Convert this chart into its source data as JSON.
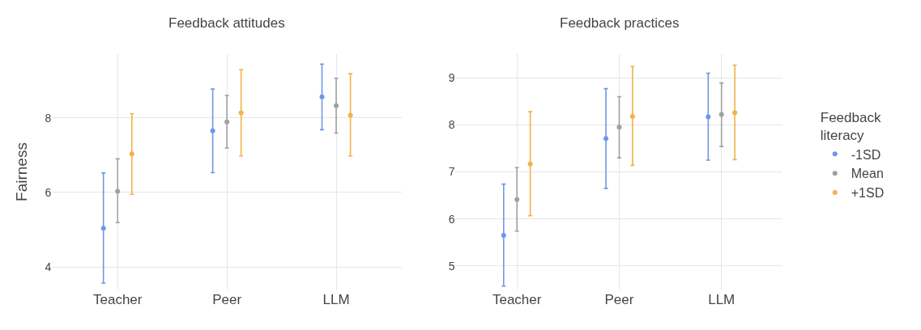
{
  "chart_data": [
    {
      "type": "scatter",
      "title": "Feedback attitudes",
      "legend_title": "Feedback literacy",
      "ylabel": "Fairness",
      "categories": [
        "Teacher",
        "Peer",
        "LLM"
      ],
      "ylim": [
        3.4,
        9.7
      ],
      "yticks": [
        4,
        6,
        8
      ],
      "grid": true,
      "marker": "circle",
      "legend": "right",
      "series": [
        {
          "name": "-1SD",
          "color": "#6f96e8",
          "values": [
            5.04,
            7.65,
            8.56
          ],
          "errors": [
            [
              3.57,
              6.52
            ],
            [
              6.53,
              8.77
            ],
            [
              7.68,
              9.44
            ]
          ]
        },
        {
          "name": "Mean",
          "color": "#a0a0a0",
          "values": [
            6.03,
            7.89,
            8.32
          ],
          "errors": [
            [
              5.19,
              6.9
            ],
            [
              7.19,
              8.6
            ],
            [
              7.59,
              9.06
            ]
          ]
        },
        {
          "name": "+1SD",
          "color": "#f5b04a",
          "values": [
            7.03,
            8.13,
            8.07
          ],
          "errors": [
            [
              5.95,
              8.11
            ],
            [
              6.98,
              9.29
            ],
            [
              6.98,
              9.18
            ]
          ]
        }
      ]
    },
    {
      "type": "scatter",
      "title": "Feedback practices",
      "categories": [
        "Teacher",
        "Peer",
        "LLM"
      ],
      "ylim": [
        4.5,
        9.5
      ],
      "yticks": [
        5,
        6,
        7,
        8,
        9
      ],
      "grid": true,
      "marker": "circle",
      "series": [
        {
          "color": "#6f96e8",
          "values": [
            5.65,
            7.71,
            8.17
          ],
          "errors": [
            [
              4.57,
              6.74
            ],
            [
              6.65,
              8.77
            ],
            [
              7.25,
              9.1
            ]
          ]
        },
        {
          "color": "#a0a0a0",
          "values": [
            6.41,
            7.95,
            8.22
          ],
          "errors": [
            [
              5.74,
              7.09
            ],
            [
              7.3,
              8.6
            ],
            [
              7.54,
              8.89
            ]
          ]
        },
        {
          "color": "#f5b04a",
          "values": [
            7.17,
            8.18,
            8.26
          ],
          "errors": [
            [
              6.07,
              8.28
            ],
            [
              7.14,
              9.24
            ],
            [
              7.26,
              9.27
            ]
          ]
        }
      ]
    }
  ]
}
